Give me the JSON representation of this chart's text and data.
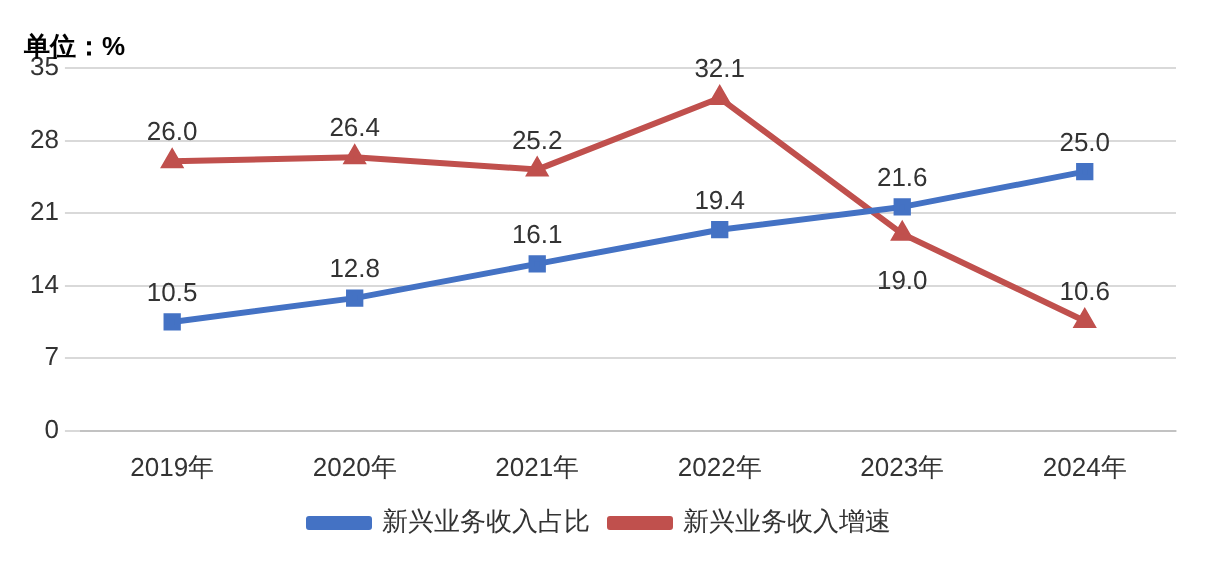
{
  "chart_data": {
    "type": "line",
    "ylabel": "单位：%",
    "categories": [
      "2019年",
      "2020年",
      "2021年",
      "2022年",
      "2023年",
      "2024年"
    ],
    "series": [
      {
        "name": "新兴业务收入占比",
        "color": "#4472c4",
        "marker": "square",
        "values": [
          10.5,
          12.8,
          16.1,
          19.4,
          21.6,
          25.0
        ],
        "value_labels": [
          "10.5",
          "12.8",
          "16.1",
          "19.4",
          "21.6",
          "25.0"
        ]
      },
      {
        "name": "新兴业务收入增速",
        "color": "#c0504d",
        "marker": "triangle",
        "values": [
          26.0,
          26.4,
          25.2,
          32.1,
          19.0,
          10.6
        ],
        "value_labels": [
          "26.0",
          "26.4",
          "25.2",
          "32.1",
          "19.0",
          "10.6"
        ]
      }
    ],
    "ylim": [
      0,
      35
    ],
    "yticks": [
      0,
      7,
      14,
      21,
      28,
      35
    ],
    "grid": "y",
    "legend": "bottom",
    "line_style": "solid"
  }
}
